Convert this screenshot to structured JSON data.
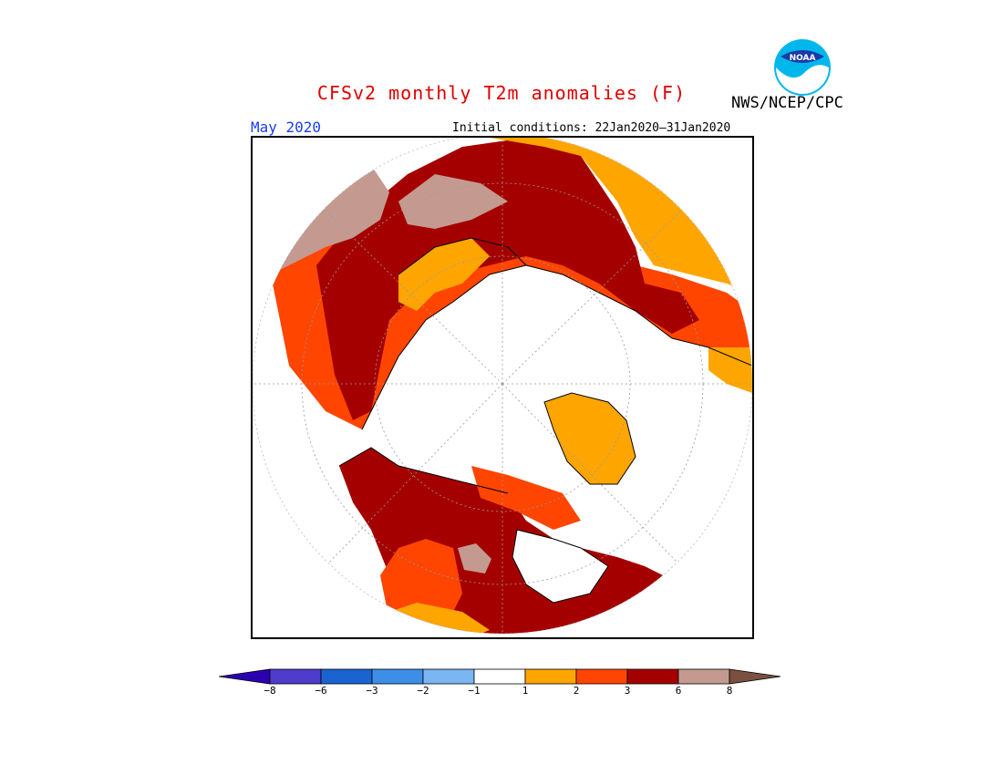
{
  "title": "CFSv2 monthly T2m anomalies (F)",
  "agency": "NWS/NCEP/CPC",
  "logo_text": "NOAA",
  "valid_month": "May 2020",
  "initial_conditions": "Initial conditions: 22Jan2020–31Jan2020",
  "legend": {
    "tick_labels": [
      "−8",
      "−6",
      "−3",
      "−2",
      "−1",
      "1",
      "2",
      "3",
      "6",
      "8"
    ],
    "colors": [
      "#2a00b0",
      "#4e3ccc",
      "#1a63d1",
      "#3c8ee6",
      "#7ab6f2",
      "#ffffff",
      "#ffa500",
      "#ff4500",
      "#a50000",
      "#c49a90",
      "#7a5040"
    ]
  },
  "colors": {
    "map_border": "#000000",
    "coastline": "#000000",
    "graticule": "#9a9a9a"
  }
}
